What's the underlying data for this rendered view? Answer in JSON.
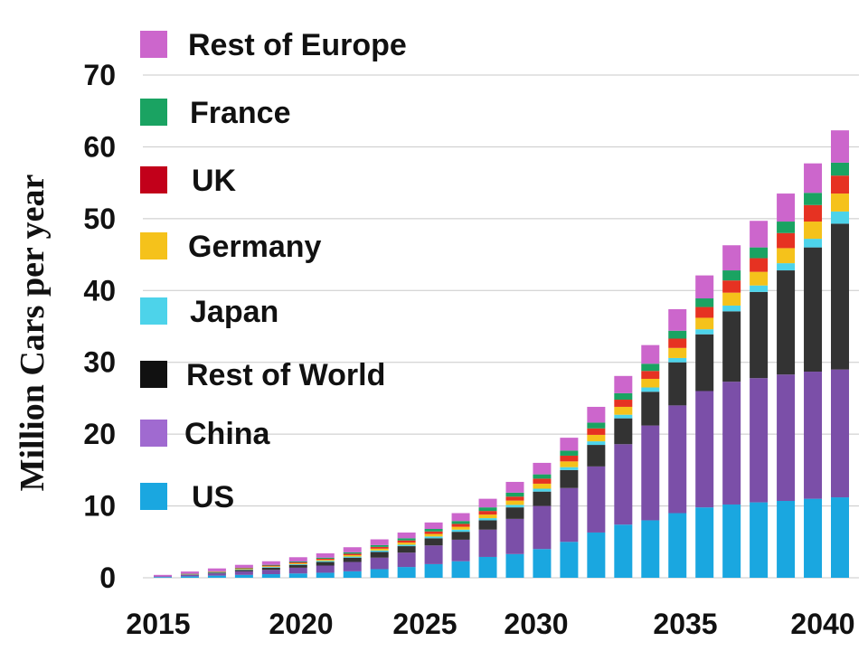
{
  "chart_data": {
    "type": "bar",
    "stacked": true,
    "title": "",
    "xlabel": "",
    "ylabel": "Million Cars per year",
    "ylim": [
      0,
      70
    ],
    "yticks": [
      0,
      10,
      20,
      30,
      40,
      50,
      60,
      70
    ],
    "grid": true,
    "legend_position": "top-left",
    "x_tick_labels": [
      "2015",
      "2020",
      "2025",
      "2030",
      "2035",
      "2040"
    ],
    "categories": [
      2015,
      2016,
      2017,
      2018,
      2019,
      2020,
      2021,
      2022,
      2023,
      2024,
      2025,
      2026,
      2027,
      2028,
      2029,
      2030,
      2031,
      2032,
      2033,
      2034,
      2035,
      2036,
      2037,
      2038,
      2039,
      2040
    ],
    "series": [
      {
        "name": "US",
        "color": "#1aa7e0",
        "values": [
          0.1,
          0.2,
          0.3,
          0.4,
          0.5,
          0.6,
          0.7,
          0.9,
          1.2,
          1.5,
          1.9,
          2.3,
          2.9,
          3.3,
          4.0,
          5.0,
          6.3,
          7.4,
          8.0,
          9.0,
          9.8,
          10.2,
          10.5,
          10.7,
          11.0,
          11.2
        ]
      },
      {
        "name": "China",
        "color": "#7b4fa8",
        "values": [
          0.1,
          0.2,
          0.3,
          0.5,
          0.6,
          0.8,
          1.0,
          1.3,
          1.6,
          2.0,
          2.6,
          3.0,
          3.8,
          4.9,
          6.0,
          7.5,
          9.2,
          11.2,
          13.2,
          15.0,
          16.2,
          17.1,
          17.3,
          17.6,
          17.7,
          17.8
        ]
      },
      {
        "name": "Rest of World",
        "color": "#333333",
        "values": [
          0.0,
          0.05,
          0.1,
          0.2,
          0.3,
          0.4,
          0.5,
          0.6,
          0.8,
          0.9,
          1.0,
          1.1,
          1.3,
          1.6,
          2.0,
          2.5,
          3.0,
          3.6,
          4.7,
          6.0,
          7.9,
          9.8,
          12.0,
          14.5,
          17.3,
          20.3
        ]
      },
      {
        "name": "Japan",
        "color": "#4dd3ea",
        "values": [
          0.0,
          0.03,
          0.05,
          0.08,
          0.1,
          0.1,
          0.15,
          0.15,
          0.2,
          0.2,
          0.25,
          0.3,
          0.3,
          0.35,
          0.4,
          0.4,
          0.5,
          0.5,
          0.6,
          0.6,
          0.7,
          0.8,
          0.9,
          1.0,
          1.2,
          1.7
        ]
      },
      {
        "name": "Germany",
        "color": "#f5c21b",
        "values": [
          0.0,
          0.03,
          0.05,
          0.08,
          0.1,
          0.12,
          0.15,
          0.2,
          0.25,
          0.3,
          0.35,
          0.4,
          0.5,
          0.6,
          0.7,
          0.8,
          0.9,
          1.1,
          1.2,
          1.4,
          1.6,
          1.8,
          1.9,
          2.1,
          2.4,
          2.5
        ]
      },
      {
        "name": "UK",
        "color": "#e63222",
        "values": [
          0.0,
          0.03,
          0.05,
          0.07,
          0.1,
          0.12,
          0.15,
          0.2,
          0.25,
          0.3,
          0.35,
          0.4,
          0.5,
          0.55,
          0.7,
          0.8,
          0.9,
          1.0,
          1.1,
          1.3,
          1.5,
          1.7,
          1.9,
          2.1,
          2.3,
          2.5
        ]
      },
      {
        "name": "France",
        "color": "#1aa362",
        "values": [
          0.0,
          0.03,
          0.05,
          0.07,
          0.1,
          0.12,
          0.15,
          0.2,
          0.25,
          0.3,
          0.35,
          0.4,
          0.5,
          0.55,
          0.6,
          0.7,
          0.8,
          0.9,
          1.0,
          1.1,
          1.2,
          1.4,
          1.5,
          1.6,
          1.7,
          1.8
        ]
      },
      {
        "name": "Rest of Europe",
        "color": "#cc66cc",
        "values": [
          0.2,
          0.3,
          0.4,
          0.4,
          0.5,
          0.6,
          0.6,
          0.7,
          0.8,
          0.8,
          0.9,
          1.1,
          1.2,
          1.5,
          1.6,
          1.8,
          2.2,
          2.4,
          2.6,
          3.0,
          3.2,
          3.5,
          3.7,
          3.9,
          4.1,
          4.5
        ]
      }
    ],
    "legend": [
      {
        "label": "Rest of Europe",
        "color": "#cc66cc"
      },
      {
        "label": "France",
        "color": "#1aa362"
      },
      {
        "label": "UK",
        "color": "#c2001a"
      },
      {
        "label": "Germany",
        "color": "#f5c21b"
      },
      {
        "label": "Japan",
        "color": "#4dd3ea"
      },
      {
        "label": "Rest of World",
        "color": "#111111"
      },
      {
        "label": "China",
        "color": "#a06ad0"
      },
      {
        "label": "US",
        "color": "#1aa7e0"
      }
    ]
  }
}
